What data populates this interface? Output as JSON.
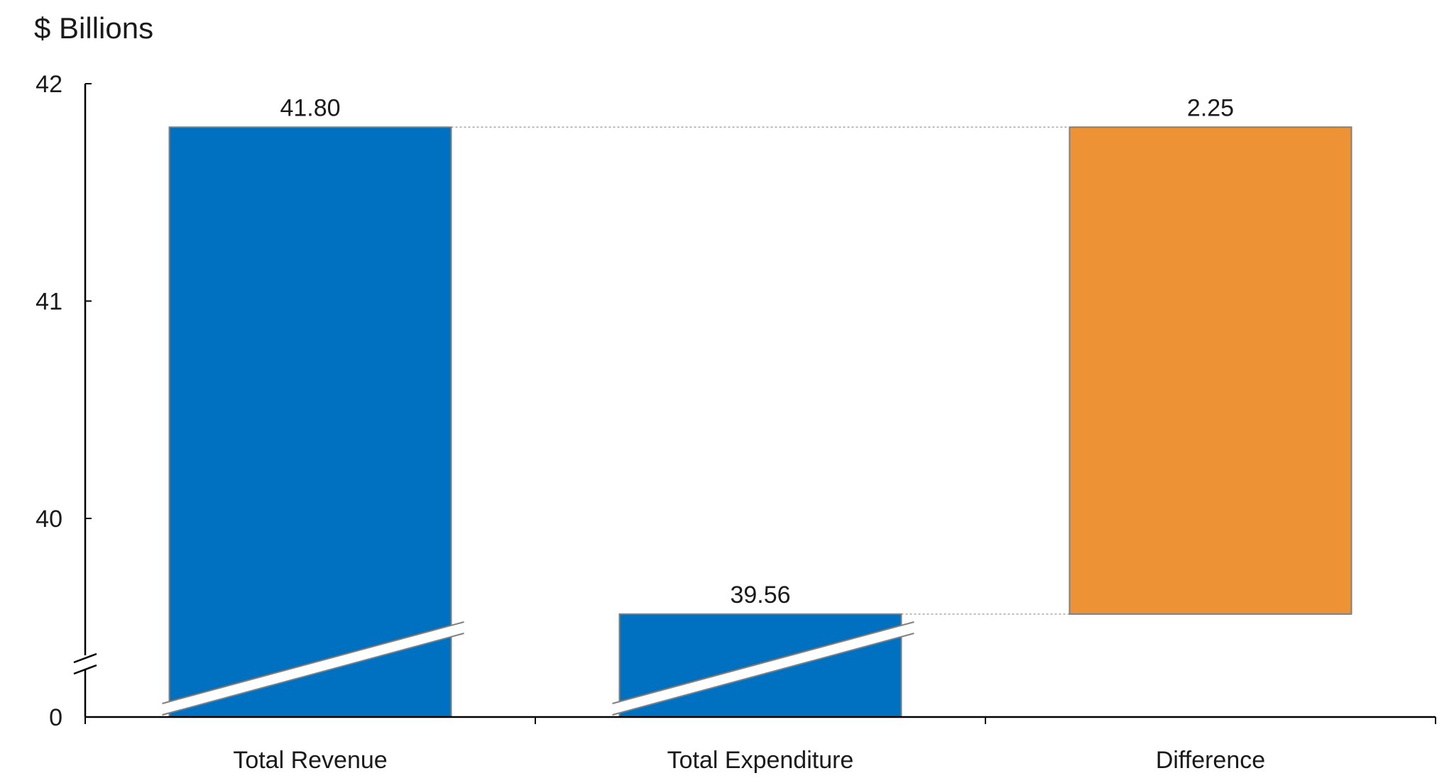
{
  "chart_data": {
    "type": "bar",
    "subtype": "waterfall-with-axis-break",
    "unit_label": "$ Billions",
    "categories": [
      "Total Revenue",
      "Total Expenditure",
      "Difference"
    ],
    "values": [
      41.8,
      39.56,
      2.25
    ],
    "data_labels": [
      "41.80",
      "39.56",
      "2.25"
    ],
    "difference_range": [
      39.56,
      41.8
    ],
    "y_ticks": [
      "0",
      "40",
      "41",
      "42"
    ],
    "y_tick_values": [
      0,
      40,
      41,
      42
    ],
    "axis_break": true,
    "ylim": [
      39.55,
      42
    ],
    "grid": false,
    "colors": {
      "total_revenue": "#0070C0",
      "total_expenditure": "#0070C0",
      "difference": "#ED9235",
      "bar_border": "#7F7F7F",
      "connector": "#A6A6A6",
      "axis": "#000000"
    }
  }
}
